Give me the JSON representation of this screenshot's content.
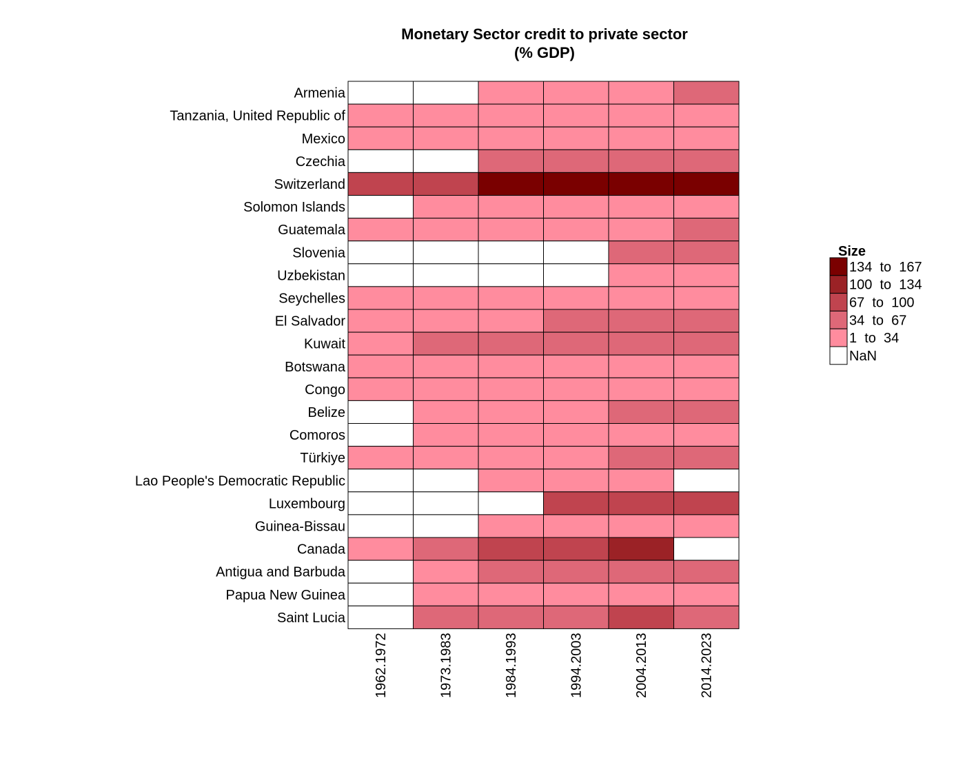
{
  "chart_data": {
    "type": "heatmap",
    "title": "Monetary Sector credit to private sector",
    "subtitle": "(% GDP)",
    "xlabel": "",
    "ylabel": "",
    "columns": [
      "1962.1972",
      "1973.1983",
      "1984.1993",
      "1994.2003",
      "2004.2013",
      "2014.2023"
    ],
    "rows": [
      "Armenia",
      "Tanzania, United Republic of",
      "Mexico",
      "Czechia",
      "Switzerland",
      "Solomon Islands",
      "Guatemala",
      "Slovenia",
      "Uzbekistan",
      "Seychelles",
      "El Salvador",
      "Kuwait",
      "Botswana",
      "Congo",
      "Belize",
      "Comoros",
      "Türkiye",
      "Lao People's Democratic Republic",
      "Luxembourg",
      "Guinea-Bissau",
      "Canada",
      "Antigua and Barbuda",
      "Papua New Guinea",
      "Saint Lucia"
    ],
    "category_matrix": [
      [
        "NaN",
        "NaN",
        "1 to 34",
        "1 to 34",
        "1 to 34",
        "34 to 67"
      ],
      [
        "1 to 34",
        "1 to 34",
        "1 to 34",
        "1 to 34",
        "1 to 34",
        "1 to 34"
      ],
      [
        "1 to 34",
        "1 to 34",
        "1 to 34",
        "1 to 34",
        "1 to 34",
        "1 to 34"
      ],
      [
        "NaN",
        "NaN",
        "34 to 67",
        "34 to 67",
        "34 to 67",
        "34 to 67"
      ],
      [
        "67 to 100",
        "67 to 100",
        "134 to 167",
        "134 to 167",
        "134 to 167",
        "134 to 167"
      ],
      [
        "NaN",
        "1 to 34",
        "1 to 34",
        "1 to 34",
        "1 to 34",
        "1 to 34"
      ],
      [
        "1 to 34",
        "1 to 34",
        "1 to 34",
        "1 to 34",
        "1 to 34",
        "34 to 67"
      ],
      [
        "NaN",
        "NaN",
        "NaN",
        "NaN",
        "34 to 67",
        "34 to 67"
      ],
      [
        "NaN",
        "NaN",
        "NaN",
        "NaN",
        "1 to 34",
        "1 to 34"
      ],
      [
        "1 to 34",
        "1 to 34",
        "1 to 34",
        "1 to 34",
        "1 to 34",
        "1 to 34"
      ],
      [
        "1 to 34",
        "1 to 34",
        "1 to 34",
        "34 to 67",
        "34 to 67",
        "34 to 67"
      ],
      [
        "1 to 34",
        "34 to 67",
        "34 to 67",
        "34 to 67",
        "34 to 67",
        "34 to 67"
      ],
      [
        "1 to 34",
        "1 to 34",
        "1 to 34",
        "1 to 34",
        "1 to 34",
        "1 to 34"
      ],
      [
        "1 to 34",
        "1 to 34",
        "1 to 34",
        "1 to 34",
        "1 to 34",
        "1 to 34"
      ],
      [
        "NaN",
        "1 to 34",
        "1 to 34",
        "1 to 34",
        "34 to 67",
        "34 to 67"
      ],
      [
        "NaN",
        "1 to 34",
        "1 to 34",
        "1 to 34",
        "1 to 34",
        "1 to 34"
      ],
      [
        "1 to 34",
        "1 to 34",
        "1 to 34",
        "1 to 34",
        "34 to 67",
        "34 to 67"
      ],
      [
        "NaN",
        "NaN",
        "1 to 34",
        "1 to 34",
        "1 to 34",
        "NaN"
      ],
      [
        "NaN",
        "NaN",
        "NaN",
        "67 to 100",
        "67 to 100",
        "67 to 100"
      ],
      [
        "NaN",
        "NaN",
        "1 to 34",
        "1 to 34",
        "1 to 34",
        "1 to 34"
      ],
      [
        "1 to 34",
        "34 to 67",
        "67 to 100",
        "67 to 100",
        "100 to 134",
        "NaN"
      ],
      [
        "NaN",
        "1 to 34",
        "34 to 67",
        "34 to 67",
        "34 to 67",
        "34 to 67"
      ],
      [
        "NaN",
        "1 to 34",
        "1 to 34",
        "1 to 34",
        "1 to 34",
        "1 to 34"
      ],
      [
        "NaN",
        "34 to 67",
        "34 to 67",
        "34 to 67",
        "67 to 100",
        "34 to 67"
      ]
    ],
    "legend": {
      "title": "Size",
      "position": "right",
      "items": [
        {
          "label": "134  to  167",
          "key": "134 to 167",
          "color": "#7a0000"
        },
        {
          "label": "100  to  134",
          "key": "100 to 134",
          "color": "#9b2226"
        },
        {
          "label": "67  to  100",
          "key": "67 to 100",
          "color": "#c0444f"
        },
        {
          "label": "34  to  67",
          "key": "34 to 67",
          "color": "#de6878"
        },
        {
          "label": "1  to  34",
          "key": "1 to 34",
          "color": "#ff8c9e"
        },
        {
          "label": "NaN",
          "key": "NaN",
          "color": "#ffffff"
        }
      ]
    },
    "grid": false
  }
}
